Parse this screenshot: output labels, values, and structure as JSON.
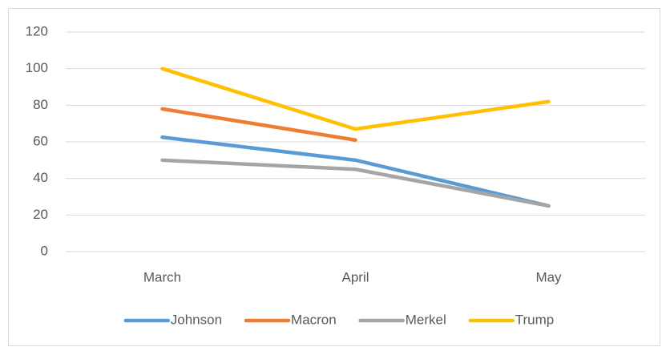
{
  "chart_data": {
    "type": "line",
    "categories": [
      "March",
      "April",
      "May"
    ],
    "series": [
      {
        "name": "Johnson",
        "color": "#5b9bd5",
        "values": [
          62.5,
          50,
          25
        ]
      },
      {
        "name": "Macron",
        "color": "#ed7d31",
        "values": [
          78,
          61,
          null
        ]
      },
      {
        "name": "Merkel",
        "color": "#a5a5a5",
        "values": [
          50,
          45,
          25
        ]
      },
      {
        "name": "Trump",
        "color": "#ffc000",
        "values": [
          100,
          67,
          82
        ]
      }
    ],
    "ylim": [
      0,
      120
    ],
    "yticks": [
      0,
      20,
      40,
      60,
      80,
      100,
      120
    ],
    "grid": true,
    "legend": "bottom"
  }
}
